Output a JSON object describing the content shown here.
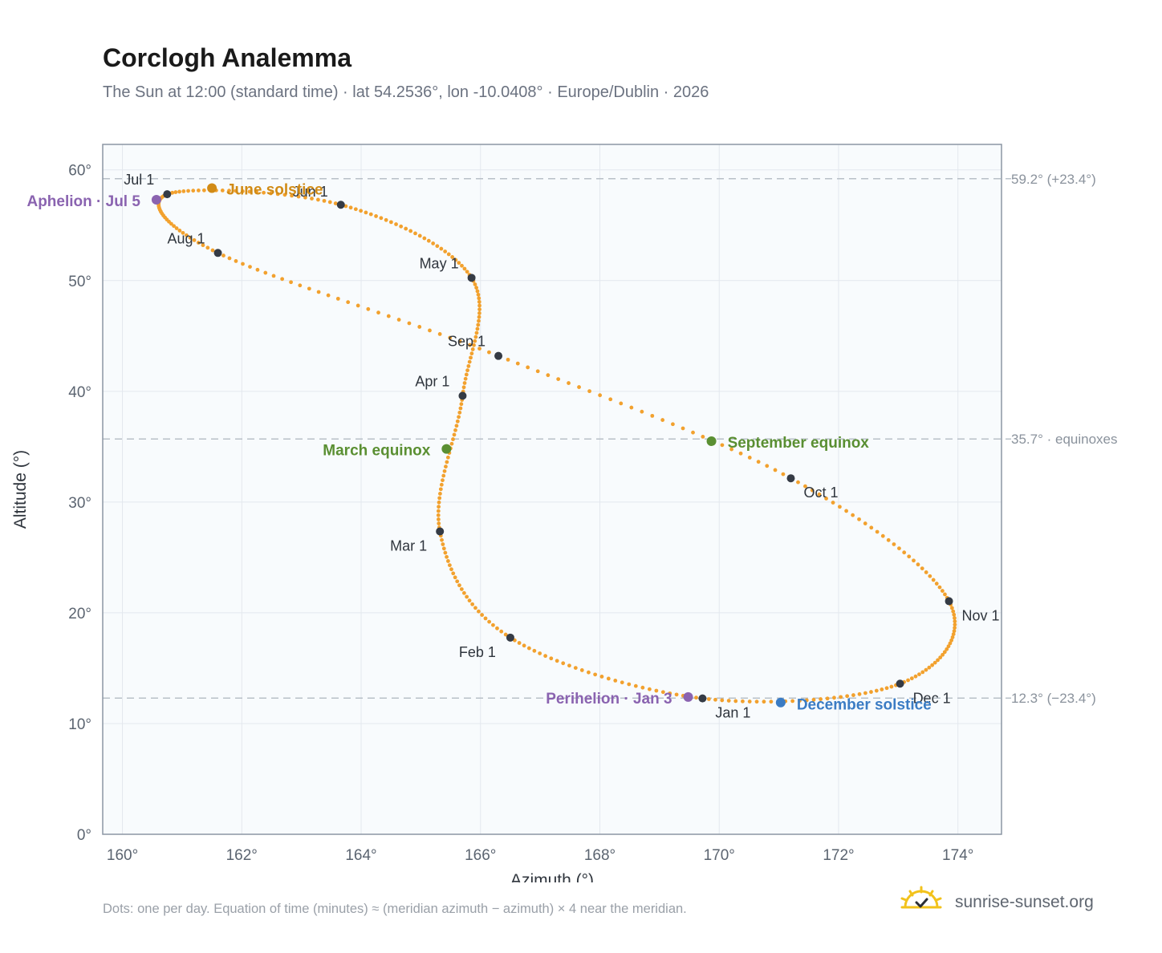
{
  "title": "Corclogh Analemma",
  "subtitle": "The Sun at 12:00 (standard time) · lat 54.2536°, lon -10.0408° · Europe/Dublin · 2026",
  "footnote": "Dots: one per day. Equation of time (minutes) ≈ (meridian azimuth − azimuth) × 4 near the meridian.",
  "brand": {
    "text": "sunrise-sunset.org",
    "icon": "sun-check-icon"
  },
  "colors": {
    "curve": "#f2a12e",
    "month_dot": "#353b45",
    "solstice_june": "#d18b16",
    "solstice_december": "#3b7cc4",
    "equinox": "#5a8f32",
    "apsis": "#8a63b0",
    "reference_line": "#b8c0c8",
    "plot_bg": "#f8fbfd",
    "axis": "#8c96a3"
  },
  "chart_data": {
    "type": "scatter",
    "xlabel": "Azimuth (°)",
    "ylabel": "Altitude (°)",
    "xlim": [
      159.67,
      174.73
    ],
    "ylim": [
      0,
      62.3
    ],
    "xticks": [
      160,
      162,
      164,
      166,
      168,
      170,
      172,
      174
    ],
    "yticks": [
      0,
      10,
      20,
      30,
      40,
      50,
      60
    ],
    "xtick_labels": [
      "160°",
      "162°",
      "164°",
      "166°",
      "168°",
      "170°",
      "172°",
      "174°"
    ],
    "ytick_labels": [
      "0°",
      "10°",
      "20°",
      "30°",
      "40°",
      "50°",
      "60°"
    ],
    "grid": true,
    "month_path": [
      {
        "date": "Jan 1",
        "az": 169.72,
        "alt": 12.27
      },
      {
        "date": "Feb 1",
        "az": 166.5,
        "alt": 17.76
      },
      {
        "date": "Mar 1",
        "az": 165.32,
        "alt": 27.35
      },
      {
        "date": "Apr 1",
        "az": 165.7,
        "alt": 39.6
      },
      {
        "date": "May 1",
        "az": 165.85,
        "alt": 50.25
      },
      {
        "date": "Jun 1",
        "az": 163.66,
        "alt": 56.85
      },
      {
        "date": "Jul 1",
        "az": 160.75,
        "alt": 57.8
      },
      {
        "date": "Aug 1",
        "az": 161.6,
        "alt": 52.5
      },
      {
        "date": "Sep 1",
        "az": 166.3,
        "alt": 43.2
      },
      {
        "date": "Oct 1",
        "az": 171.2,
        "alt": 32.15
      },
      {
        "date": "Nov 1",
        "az": 173.85,
        "alt": 21.05
      },
      {
        "date": "Dec 1",
        "az": 173.03,
        "alt": 13.6
      },
      {
        "date": "Jan 1",
        "az": 169.72,
        "alt": 12.27
      }
    ],
    "month_markers": [
      {
        "label": "Jan 1",
        "az": 169.72,
        "alt": 12.27
      },
      {
        "label": "Feb 1",
        "az": 166.5,
        "alt": 17.76
      },
      {
        "label": "Mar 1",
        "az": 165.32,
        "alt": 27.35
      },
      {
        "label": "Apr 1",
        "az": 165.7,
        "alt": 39.6
      },
      {
        "label": "May 1",
        "az": 165.85,
        "alt": 50.25
      },
      {
        "label": "Jun 1",
        "az": 163.66,
        "alt": 56.85
      },
      {
        "label": "Jul 1",
        "az": 160.75,
        "alt": 57.8
      },
      {
        "label": "Aug 1",
        "az": 161.6,
        "alt": 52.5
      },
      {
        "label": "Sep 1",
        "az": 166.3,
        "alt": 43.2
      },
      {
        "label": "Oct 1",
        "az": 171.2,
        "alt": 32.15
      },
      {
        "label": "Nov 1",
        "az": 173.85,
        "alt": 21.05
      },
      {
        "label": "Dec 1",
        "az": 173.03,
        "alt": 13.6
      }
    ],
    "special_points": [
      {
        "label": "June solstice",
        "az": 161.5,
        "alt": 58.35,
        "kind": "solstice_june"
      },
      {
        "label": "December solstice",
        "az": 171.03,
        "alt": 11.9,
        "kind": "solstice_december"
      },
      {
        "label": "March equinox",
        "az": 165.43,
        "alt": 34.8,
        "kind": "equinox"
      },
      {
        "label": "September equinox",
        "az": 169.87,
        "alt": 35.5,
        "kind": "equinox"
      },
      {
        "label": "Aphelion · Jul 5",
        "az": 160.57,
        "alt": 57.3,
        "kind": "apsis"
      },
      {
        "label": "Perihelion · Jan 3",
        "az": 169.48,
        "alt": 12.4,
        "kind": "apsis"
      }
    ],
    "reference_lines": [
      {
        "alt": 59.2,
        "label": "59.2° (+23.4°)"
      },
      {
        "alt": 35.7,
        "label": "35.7° · equinoxes"
      },
      {
        "alt": 12.3,
        "label": "12.3° (−23.4°)"
      }
    ]
  }
}
